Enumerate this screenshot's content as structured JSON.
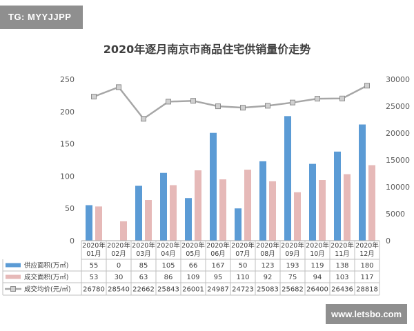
{
  "watermarks": {
    "top_left": "TG: MYYJJPP",
    "bottom_right": "www.letsbo.com"
  },
  "colors": {
    "supply": "#5b9bd5",
    "deal_area": "#e6b9b8",
    "price_line": "#a6a6a6",
    "price_marker_fill": "#d0d0d0"
  },
  "chart_data": {
    "type": "bar",
    "title": "2020年逐月南京市商品住宅供销量价走势",
    "categories": [
      "2020年01月",
      "2020年02月",
      "2020年03月",
      "2020年04月",
      "2020年05月",
      "2020年06月",
      "2020年07月",
      "2020年08月",
      "2020年09月",
      "2020年10月",
      "2020年11月",
      "2020年12月"
    ],
    "category_lines": [
      [
        "2020年",
        "01月"
      ],
      [
        "2020年",
        "02月"
      ],
      [
        "2020年",
        "03月"
      ],
      [
        "2020年",
        "04月"
      ],
      [
        "2020年",
        "05月"
      ],
      [
        "2020年",
        "06月"
      ],
      [
        "2020年",
        "07月"
      ],
      [
        "2020年",
        "08月"
      ],
      [
        "2020年",
        "09月"
      ],
      [
        "2020年",
        "10月"
      ],
      [
        "2020年",
        "11月"
      ],
      [
        "2020年",
        "12月"
      ]
    ],
    "series": [
      {
        "name": "供应面积(万㎡)",
        "type": "bar",
        "axis": "left",
        "values": [
          55,
          0,
          85,
          105,
          66,
          167,
          50,
          123,
          193,
          119,
          138,
          180
        ]
      },
      {
        "name": "成交面积(万㎡)",
        "type": "bar",
        "axis": "left",
        "values": [
          53,
          30,
          63,
          86,
          109,
          95,
          110,
          92,
          75,
          94,
          103,
          117
        ]
      },
      {
        "name": "成交均价(元/㎡)",
        "type": "line",
        "axis": "right",
        "values": [
          26780,
          28540,
          22662,
          25843,
          26001,
          24987,
          24723,
          25083,
          25682,
          26400,
          26436,
          28818
        ]
      }
    ],
    "ylim_left": [
      0,
      250
    ],
    "yticks_left": [
      0,
      50,
      100,
      150,
      200,
      250
    ],
    "ylim_right": [
      0,
      30000
    ],
    "yticks_right": [
      0,
      5000,
      10000,
      15000,
      20000,
      25000,
      30000
    ],
    "grid": false,
    "legend": "data-table"
  }
}
